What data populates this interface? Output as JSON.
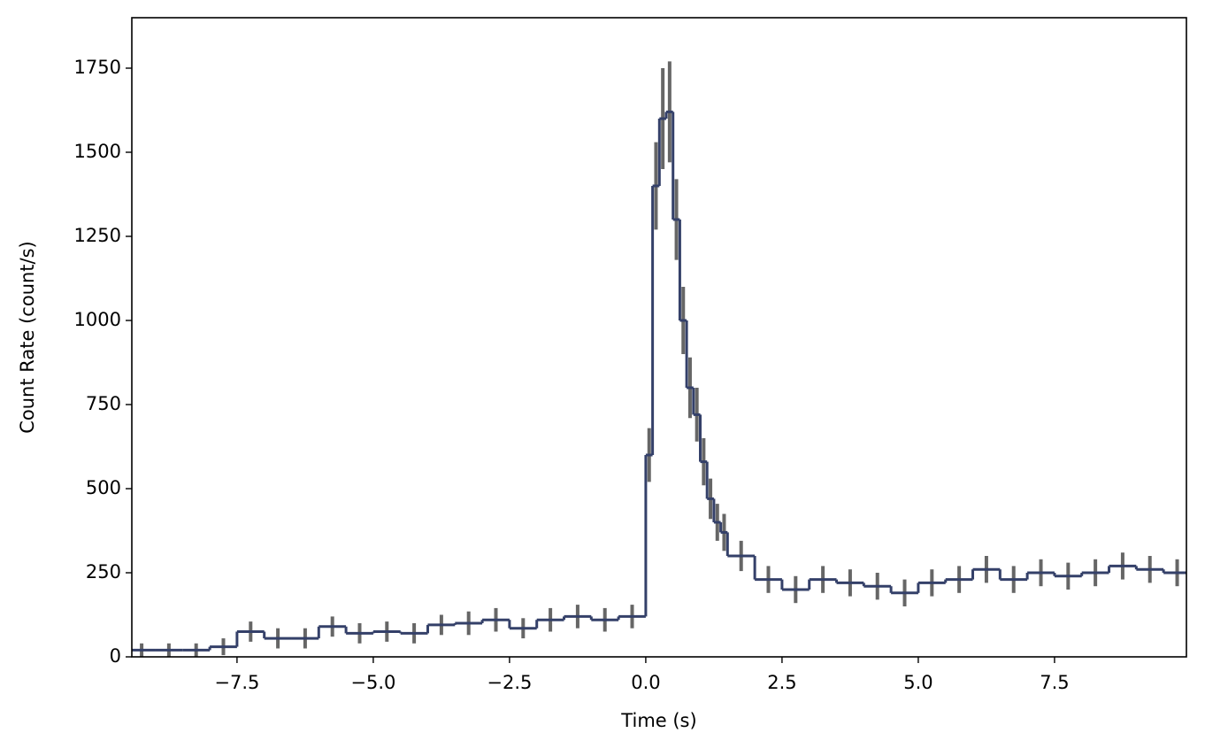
{
  "chart_data": {
    "type": "histogram",
    "x_label": "Time (s)",
    "y_label": "Count Rate (count/s)",
    "bins": [
      -9.5,
      -9,
      -8.5,
      -8,
      -7.5,
      -7,
      -6.5,
      -6,
      -5.5,
      -5,
      -4.5,
      -4,
      -3.5,
      -3,
      -2.5,
      -2,
      -1.5,
      -1,
      -0.5,
      0,
      0.125,
      0.25,
      0.375,
      0.5,
      0.625,
      0.75,
      0.875,
      1,
      1.125,
      1.25,
      1.375,
      1.5,
      2,
      2.5,
      3,
      3.5,
      4,
      4.5,
      5,
      5.5,
      6,
      6.5,
      7,
      7.5,
      8,
      8.5,
      9,
      9.5,
      10
    ],
    "values": [
      20,
      20,
      20,
      30,
      75,
      55,
      55,
      90,
      70,
      75,
      70,
      95,
      100,
      110,
      85,
      110,
      120,
      110,
      120,
      600,
      1400,
      1600,
      1620,
      1300,
      1000,
      800,
      720,
      580,
      470,
      400,
      370,
      300,
      230,
      200,
      230,
      220,
      210,
      190,
      220,
      230,
      260,
      230,
      250,
      240,
      250,
      270,
      260,
      250
    ],
    "errors": [
      20,
      20,
      20,
      25,
      30,
      30,
      30,
      30,
      30,
      30,
      30,
      30,
      35,
      35,
      30,
      35,
      35,
      35,
      35,
      80,
      130,
      150,
      150,
      120,
      100,
      90,
      80,
      70,
      60,
      55,
      55,
      45,
      40,
      40,
      40,
      40,
      40,
      40,
      40,
      40,
      40,
      40,
      40,
      40,
      40,
      40,
      40,
      40
    ],
    "color": "#344069",
    "error_color": "#666666",
    "xlim": [
      -9.43,
      9.92
    ],
    "ylim": [
      0,
      1900
    ],
    "xticks": [
      {
        "value": -7.5,
        "label": "−7.5"
      },
      {
        "value": -5,
        "label": "−5.0"
      },
      {
        "value": -2.5,
        "label": "−2.5"
      },
      {
        "value": 0,
        "label": "0.0"
      },
      2.5,
      {
        "value": 5,
        "label": "5.0"
      },
      7.5
    ],
    "yticks": [
      0,
      250,
      500,
      750,
      1000,
      1250,
      1500,
      1750
    ],
    "grid": false
  }
}
